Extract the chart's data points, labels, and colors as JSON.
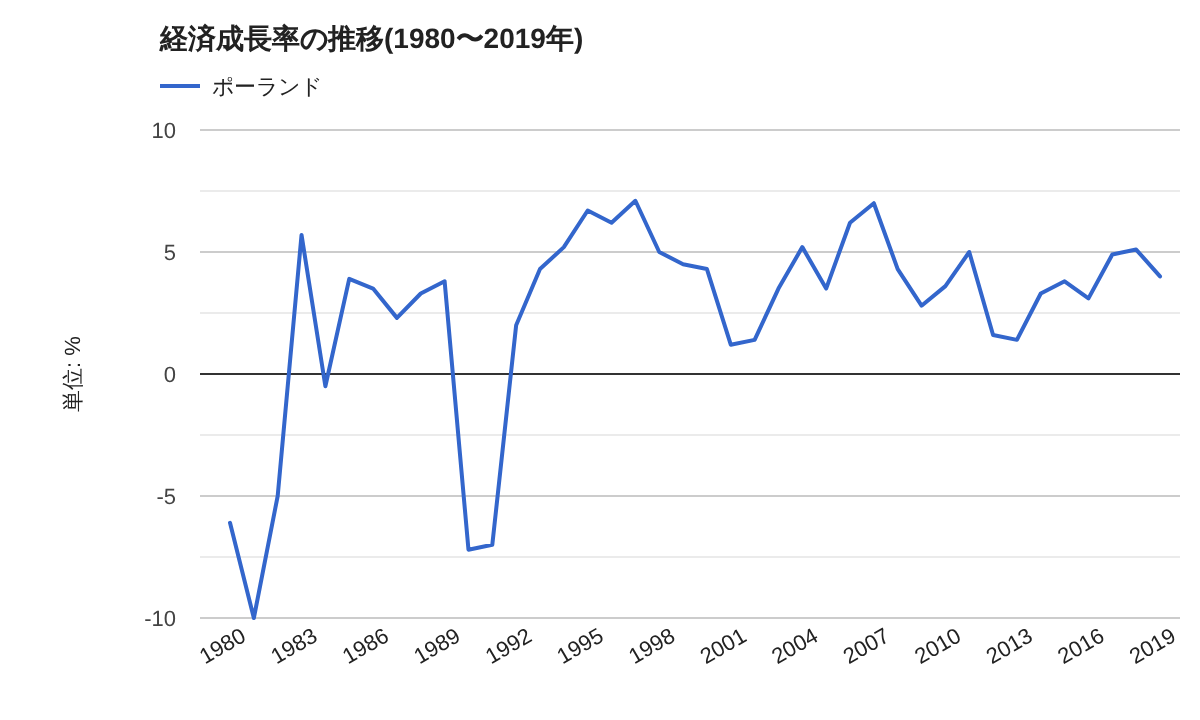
{
  "chart_data": {
    "type": "line",
    "title": "経済成長率の推移(1980〜2019年)",
    "ylabel": "単位: %",
    "categories": [
      "1980",
      null,
      null,
      "1983",
      null,
      null,
      "1986",
      null,
      null,
      "1989",
      null,
      null,
      "1992",
      null,
      null,
      "1995",
      null,
      null,
      "1998",
      null,
      null,
      "2001",
      null,
      null,
      "2004",
      null,
      null,
      "2007",
      null,
      null,
      "2010",
      null,
      null,
      "2013",
      null,
      null,
      "2016",
      null,
      null,
      "2019"
    ],
    "series": [
      {
        "name": "ポーランド",
        "color": "#3366cc",
        "values": [
          -6.1,
          -10,
          -5.0,
          5.7,
          -0.5,
          3.9,
          3.5,
          2.3,
          3.3,
          3.8,
          -7.2,
          -7.0,
          2.0,
          4.3,
          5.2,
          6.7,
          6.2,
          7.1,
          5.0,
          4.5,
          4.3,
          1.2,
          1.4,
          3.5,
          5.2,
          3.5,
          6.2,
          7.0,
          4.3,
          2.8,
          3.6,
          5.0,
          1.6,
          1.4,
          3.3,
          3.8,
          3.1,
          4.9,
          5.1,
          4.0
        ]
      }
    ],
    "ylim": [
      -10,
      10
    ],
    "yticks": [
      -10,
      {
        "value": -7.5,
        "label": null
      },
      -5,
      {
        "value": -2.5,
        "label": null
      },
      0,
      {
        "value": 2.5,
        "label": null
      },
      5,
      {
        "value": 7.5,
        "label": null
      },
      10
    ],
    "grid": "y",
    "legend": "top left",
    "marker": "none",
    "line_style": "solid"
  }
}
